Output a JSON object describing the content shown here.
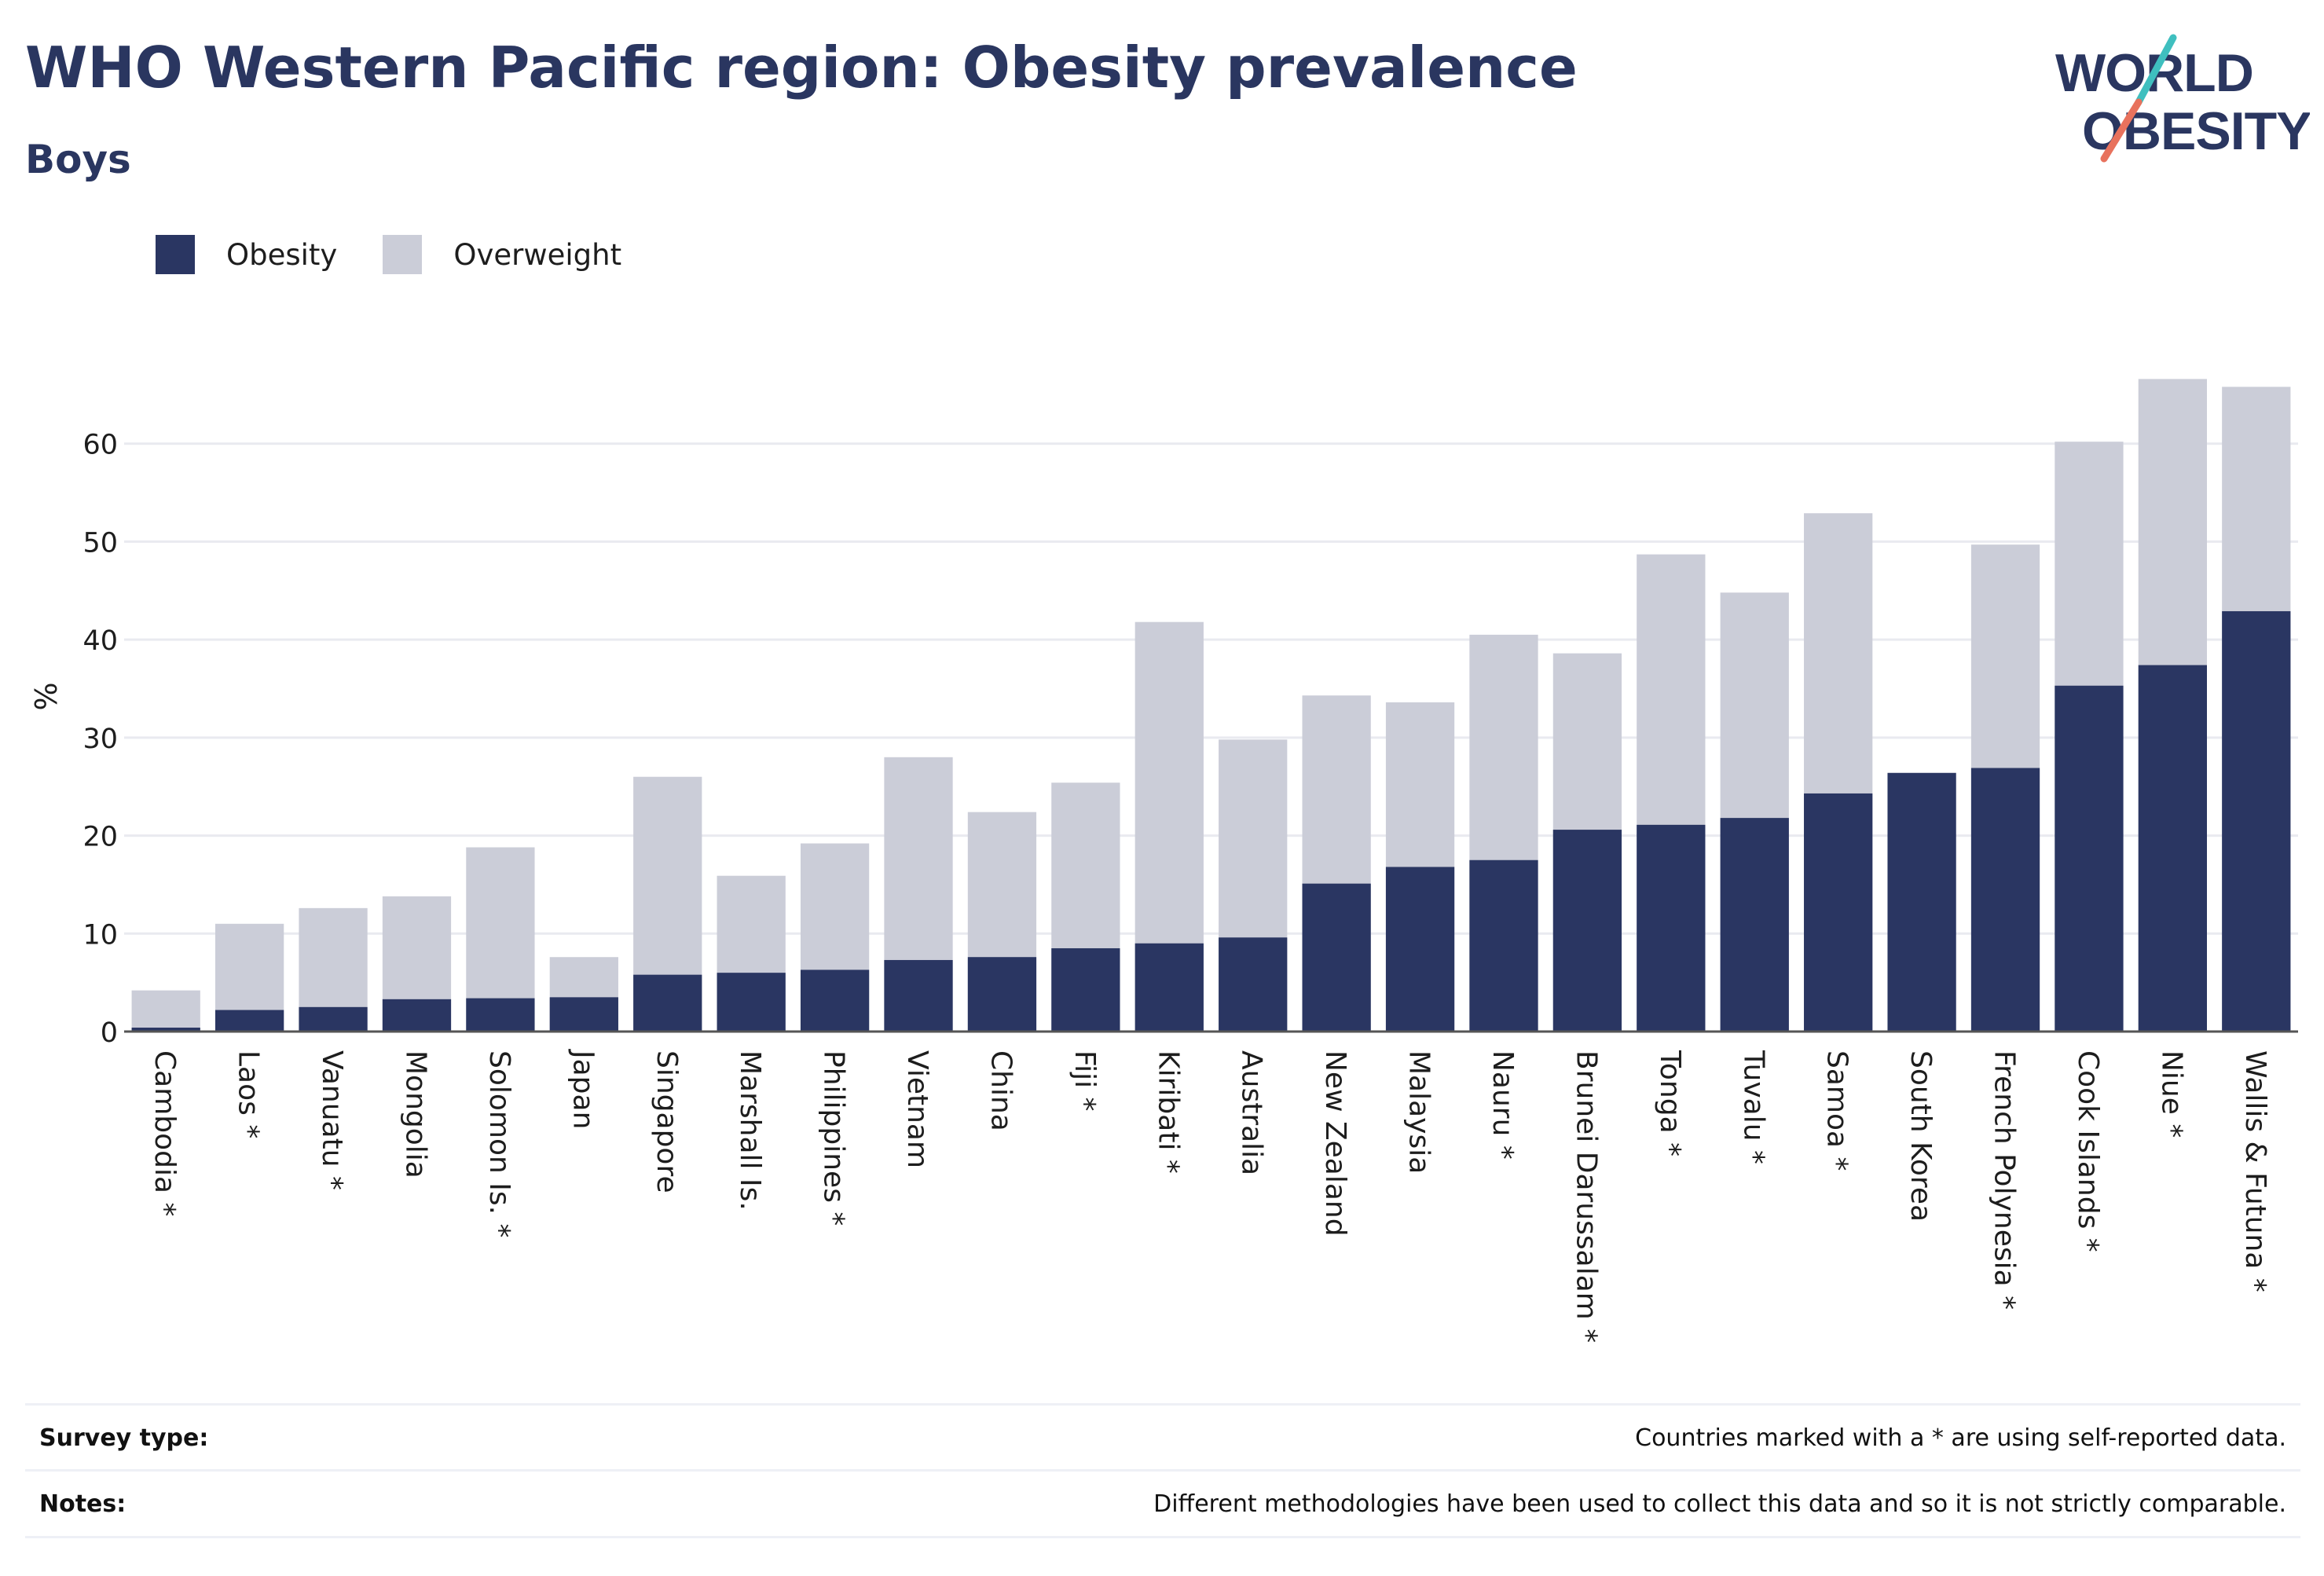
{
  "header": {
    "title": "WHO Western Pacific region: Obesity prevalence",
    "subtitle": "Boys"
  },
  "logo": {
    "line1": "WORLD",
    "line2": "OBESITY",
    "color": "#2a3660",
    "slash_top": "#3fbfbf",
    "slash_bottom": "#e8725d"
  },
  "legend": {
    "items": [
      {
        "label": "Obesity",
        "color": "#2a3662"
      },
      {
        "label": "Overweight",
        "color": "#cbcdd8"
      }
    ]
  },
  "chart_data": {
    "type": "bar",
    "stacked": false,
    "ylabel": "%",
    "xlabel": "",
    "ylim": [
      0,
      70
    ],
    "yticks": [
      0,
      10,
      20,
      30,
      40,
      50,
      60
    ],
    "grid": true,
    "legend_position": "top-left",
    "categories": [
      "Cambodia *",
      "Laos *",
      "Vanuatu *",
      "Mongolia",
      "Solomon Is. *",
      "Japan",
      "Singapore",
      "Marshall Is.",
      "Philippines *",
      "Vietnam",
      "China",
      "Fiji *",
      "Kiribati *",
      "Australia",
      "New Zealand",
      "Malaysia",
      "Nauru *",
      "Brunei Darussalam *",
      "Tonga *",
      "Tuvalu *",
      "Samoa *",
      "South Korea",
      "French Polynesia *",
      "Cook Islands *",
      "Niue *",
      "Wallis & Futuna *"
    ],
    "series": [
      {
        "name": "Overweight",
        "color": "#cbcdd8",
        "values": [
          4.2,
          11.0,
          12.6,
          13.8,
          18.8,
          7.6,
          26.0,
          15.9,
          19.2,
          28.0,
          22.4,
          25.4,
          41.8,
          29.8,
          34.3,
          33.6,
          40.5,
          38.6,
          48.7,
          44.8,
          52.9,
          null,
          49.7,
          60.2,
          66.6,
          65.8
        ]
      },
      {
        "name": "Obesity",
        "color": "#2a3662",
        "values": [
          0.4,
          2.2,
          2.5,
          3.3,
          3.4,
          3.5,
          5.8,
          6.0,
          6.3,
          7.3,
          7.6,
          8.5,
          9.0,
          9.6,
          15.1,
          16.8,
          17.5,
          20.6,
          21.1,
          21.8,
          24.3,
          26.4,
          26.9,
          35.3,
          37.4,
          42.9
        ]
      }
    ]
  },
  "footer": {
    "survey_type_label": "Survey type:",
    "survey_type_value": "Countries marked with a * are using self-reported data.",
    "notes_label": "Notes:",
    "notes_value": "Different methodologies have been used to collect this data and so it is not strictly comparable."
  }
}
